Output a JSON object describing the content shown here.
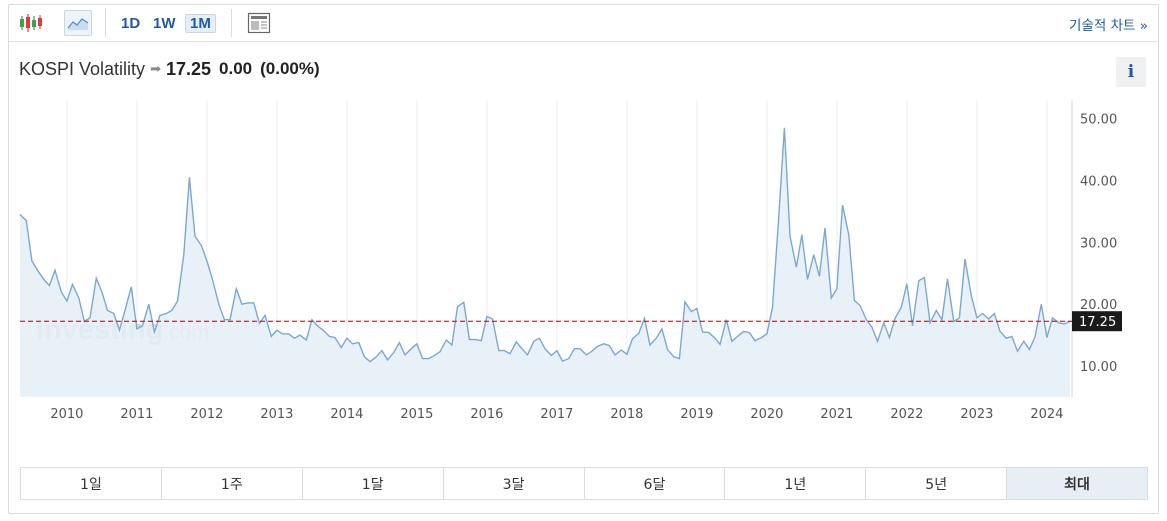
{
  "toolbar": {
    "candle_icon": "candlestick-chart-icon",
    "area_icon": "area-chart-icon",
    "intervals": [
      {
        "label": "1D",
        "active": false
      },
      {
        "label": "1W",
        "active": false
      },
      {
        "label": "1M",
        "active": true
      }
    ],
    "layout_icon": "chart-layout-icon",
    "technical_link": "기술적 차트 »"
  },
  "instrument": {
    "name": "KOSPI Volatility",
    "arrow_icon": "unchanged-arrow-icon",
    "last": "17.25",
    "change": "0.00",
    "change_pct": "(0.00%)",
    "info_icon": "info-icon",
    "info_label": "i"
  },
  "watermark": {
    "brand": "Investing",
    "suffix": ".com"
  },
  "ranges": [
    {
      "label": "1일",
      "active": false
    },
    {
      "label": "1주",
      "active": false
    },
    {
      "label": "1달",
      "active": false
    },
    {
      "label": "3달",
      "active": false
    },
    {
      "label": "6달",
      "active": false
    },
    {
      "label": "1년",
      "active": false
    },
    {
      "label": "5년",
      "active": false
    },
    {
      "label": "최대",
      "active": true
    }
  ],
  "chart_data": {
    "type": "area",
    "title": "",
    "xlabel": "",
    "ylabel": "",
    "x_ticks": [
      "2010",
      "2011",
      "2012",
      "2013",
      "2014",
      "2015",
      "2016",
      "2017",
      "2018",
      "2019",
      "2020",
      "2021",
      "2022",
      "2023",
      "2024"
    ],
    "y_ticks": [
      "10.00",
      "20.00",
      "30.00",
      "40.00",
      "50.00"
    ],
    "ylim": [
      5,
      53
    ],
    "xlim": [
      2009.33,
      2024.33
    ],
    "current_value": 17.25,
    "current_label": "17.25",
    "colors": {
      "line": "#7aa8d2",
      "fill": "#e5eef7",
      "reference": "#b00000",
      "marker_bg": "#1a1a1a"
    },
    "grid": "vertical",
    "series": [
      {
        "x": [
          2009.33,
          2009.42,
          2009.5,
          2009.58,
          2009.67,
          2009.75,
          2009.83,
          2009.92,
          2010.0,
          2010.08,
          2010.17,
          2010.25,
          2010.33,
          2010.42,
          2010.5,
          2010.58,
          2010.67,
          2010.75,
          2010.83,
          2010.92,
          2011.0,
          2011.08,
          2011.17,
          2011.25,
          2011.33,
          2011.42,
          2011.5,
          2011.58,
          2011.67,
          2011.75,
          2011.83,
          2011.92,
          2012.0,
          2012.08,
          2012.17,
          2012.25,
          2012.33,
          2012.42,
          2012.5,
          2012.58,
          2012.67,
          2012.75,
          2012.83,
          2012.92,
          2013.0,
          2013.08,
          2013.17,
          2013.25,
          2013.33,
          2013.42,
          2013.5,
          2013.58,
          2013.67,
          2013.75,
          2013.83,
          2013.92,
          2014.0,
          2014.08,
          2014.17,
          2014.25,
          2014.33,
          2014.42,
          2014.5,
          2014.58,
          2014.67,
          2014.75,
          2014.83,
          2014.92,
          2015.0,
          2015.08,
          2015.17,
          2015.25,
          2015.33,
          2015.42,
          2015.5,
          2015.58,
          2015.67,
          2015.75,
          2015.83,
          2015.92,
          2016.0,
          2016.08,
          2016.17,
          2016.25,
          2016.33,
          2016.42,
          2016.5,
          2016.58,
          2016.67,
          2016.75,
          2016.83,
          2016.92,
          2017.0,
          2017.08,
          2017.17,
          2017.25,
          2017.33,
          2017.42,
          2017.5,
          2017.58,
          2017.67,
          2017.75,
          2017.83,
          2017.92,
          2018.0,
          2018.08,
          2018.17,
          2018.25,
          2018.33,
          2018.42,
          2018.5,
          2018.58,
          2018.67,
          2018.75,
          2018.83,
          2018.92,
          2019.0,
          2019.08,
          2019.17,
          2019.25,
          2019.33,
          2019.42,
          2019.5,
          2019.58,
          2019.67,
          2019.75,
          2019.83,
          2019.92,
          2020.0,
          2020.08,
          2020.17,
          2020.25,
          2020.33,
          2020.42,
          2020.5,
          2020.58,
          2020.67,
          2020.75,
          2020.83,
          2020.92,
          2021.0,
          2021.08,
          2021.17,
          2021.25,
          2021.33,
          2021.42,
          2021.5,
          2021.58,
          2021.67,
          2021.75,
          2021.83,
          2021.92,
          2022.0,
          2022.08,
          2022.17,
          2022.25,
          2022.33,
          2022.42,
          2022.5,
          2022.58,
          2022.67,
          2022.75,
          2022.83,
          2022.92,
          2023.0,
          2023.08,
          2023.17,
          2023.25,
          2023.33,
          2023.42,
          2023.5,
          2023.58,
          2023.67,
          2023.75,
          2023.83,
          2023.92,
          2024.0,
          2024.08,
          2024.17,
          2024.25,
          2024.33
        ],
        "y": [
          34.5,
          33.5,
          27.0,
          25.5,
          24.0,
          23.0,
          25.5,
          22.0,
          20.5,
          23.2,
          21.0,
          17.2,
          17.8,
          24.2,
          22.0,
          19.0,
          18.5,
          15.8,
          19.0,
          22.8,
          16.0,
          16.5,
          20.0,
          15.5,
          18.2,
          18.5,
          19.0,
          20.5,
          28.0,
          40.5,
          31.0,
          29.5,
          27.0,
          24.0,
          20.0,
          17.5,
          17.5,
          22.5,
          20.0,
          20.2,
          20.2,
          16.9,
          18.2,
          14.8,
          15.8,
          15.2,
          15.2,
          14.5,
          15.0,
          14.2,
          17.5,
          16.5,
          15.7,
          14.8,
          14.6,
          13.0,
          14.5,
          13.6,
          13.8,
          11.5,
          10.7,
          11.5,
          12.5,
          11.0,
          12.2,
          13.8,
          11.8,
          12.8,
          13.6,
          11.2,
          11.2,
          11.7,
          12.3,
          14.2,
          13.4,
          19.6,
          20.3,
          14.3,
          14.3,
          14.1,
          18.0,
          17.6,
          12.5,
          12.5,
          12.0,
          13.9,
          12.8,
          11.8,
          14.0,
          14.5,
          12.8,
          11.7,
          12.5,
          10.8,
          11.2,
          12.8,
          12.8,
          11.8,
          12.4,
          13.2,
          13.6,
          13.3,
          11.8,
          12.6,
          11.9,
          14.4,
          15.3,
          17.7,
          13.4,
          14.5,
          16.0,
          12.7,
          11.5,
          11.2,
          20.4,
          18.8,
          19.3,
          15.5,
          15.4,
          14.6,
          13.5,
          17.5,
          14.0,
          14.8,
          15.6,
          15.4,
          14.1,
          14.6,
          15.2,
          19.5,
          34.2,
          48.5,
          31.0,
          26.0,
          31.2,
          24.0,
          28.0,
          24.5,
          32.3,
          21.0,
          22.5,
          36.0,
          31.2,
          20.6,
          19.8,
          17.5,
          16.3,
          14.0,
          17.0,
          14.6,
          17.7,
          19.5,
          23.3,
          16.5,
          23.8,
          24.3,
          17.0,
          19.0,
          17.5,
          24.1,
          17.2,
          17.8,
          27.3,
          21.4,
          17.8,
          18.5,
          17.6,
          18.5,
          15.6,
          14.5,
          14.8,
          12.4,
          14.0,
          12.7,
          14.7,
          20.0,
          14.6,
          17.8,
          17.0,
          16.8,
          17.25
        ]
      }
    ]
  }
}
